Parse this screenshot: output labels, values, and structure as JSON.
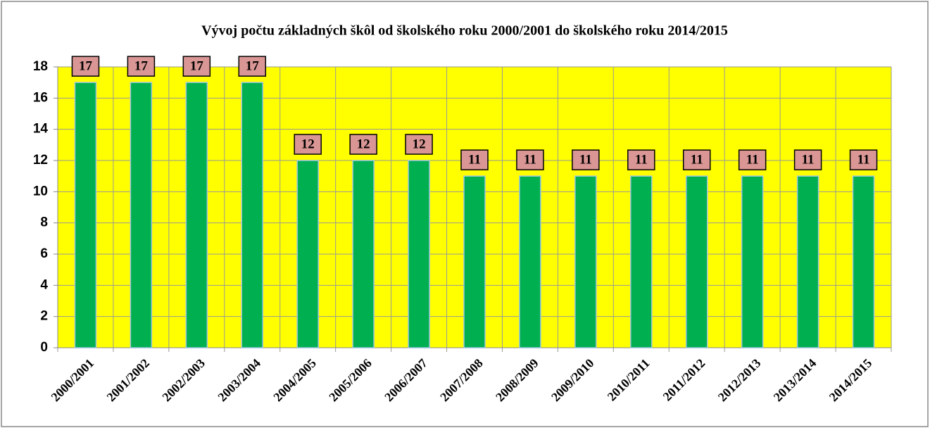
{
  "chart_data": {
    "type": "bar",
    "title": "Vývoj počtu základných škôl  od školského roku 2000/2001 do školského roku 2014/2015",
    "categories": [
      "2000/2001",
      "2001/2002",
      "2002/2003",
      "2003/2004",
      "2004/2005",
      "2005/2006",
      "2006/2007",
      "2007/2008",
      "2008/2009",
      "2009/2010",
      "2010/2011",
      "2011/2012",
      "2012/2013",
      "2013/2014",
      "2014/2015"
    ],
    "values": [
      17,
      17,
      17,
      17,
      12,
      12,
      12,
      11,
      11,
      11,
      11,
      11,
      11,
      11,
      11
    ],
    "color": "#00b050",
    "ylim": [
      0,
      18
    ],
    "yticks": [
      0,
      2,
      4,
      6,
      8,
      10,
      12,
      14,
      16,
      18
    ],
    "grid": true
  }
}
